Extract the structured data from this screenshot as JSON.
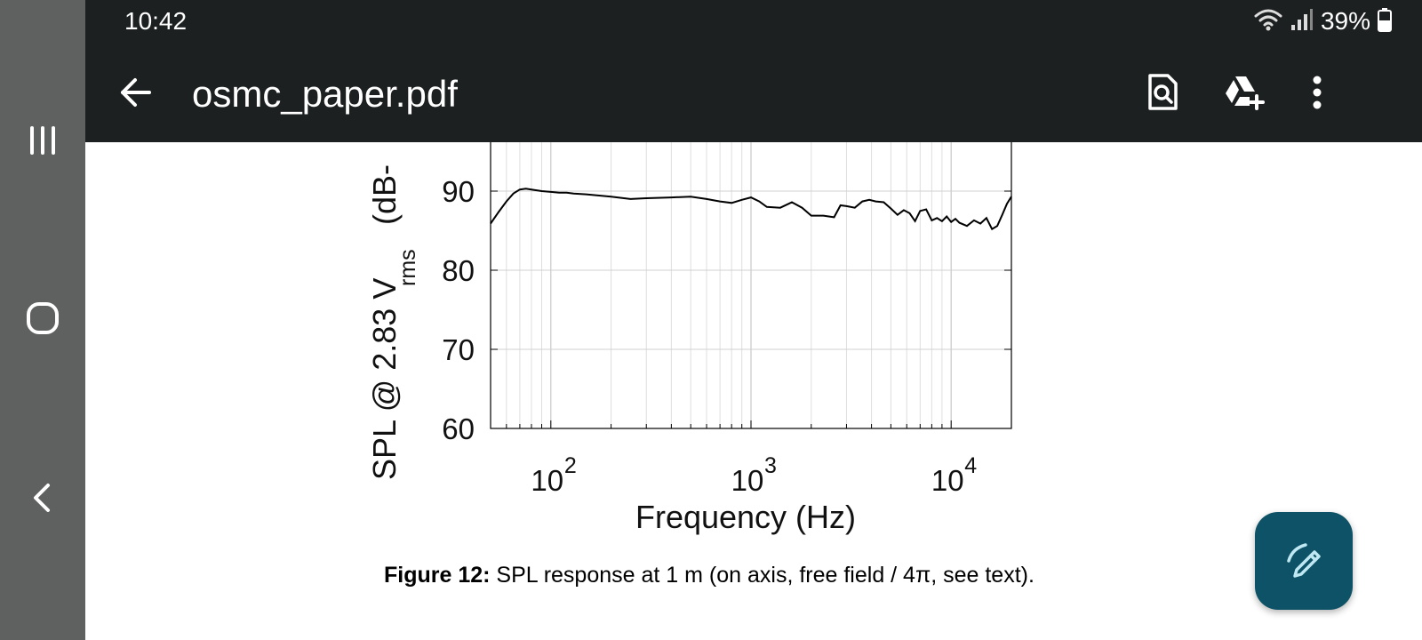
{
  "status_bar": {
    "time": "10:42",
    "battery": "39%",
    "icons": [
      "wifi-icon",
      "signal-icon",
      "battery-icon"
    ]
  },
  "app_bar": {
    "title": "osmc_paper.pdf",
    "icons": [
      "back-arrow-icon",
      "search-document-icon",
      "add-to-drive-icon",
      "more-vert-icon"
    ]
  },
  "nav_bar": {
    "icons": [
      "recents-icon",
      "home-icon",
      "back-icon"
    ]
  },
  "caption": {
    "label": "Figure 12:",
    "text": " SPL response at 1 m (on axis, free field / 4π, see text)."
  },
  "fab": {
    "icon": "edit-pen-icon",
    "color": "#0d5266"
  },
  "chart_data": {
    "type": "line",
    "title": "",
    "xlabel": "Frequency (Hz)",
    "ylabel": "SPL @ 2.83 V",
    "ylabel_sub": "rms",
    "ylabel_unit": "(dB-",
    "x_scale": "log",
    "xlim": [
      50,
      20000
    ],
    "ylim": [
      60,
      97
    ],
    "yticks": [
      60,
      70,
      80,
      90
    ],
    "xtick_bases": [
      "10",
      "10",
      "10"
    ],
    "xtick_exponents": [
      "2",
      "3",
      "4"
    ],
    "xtick_values": [
      100,
      1000,
      10000
    ],
    "grid": true,
    "series": [
      {
        "color": "#000000",
        "x": [
          50,
          55,
          60,
          65,
          70,
          75,
          80,
          90,
          100,
          110,
          120,
          130,
          150,
          200,
          250,
          300,
          400,
          500,
          600,
          700,
          800,
          900,
          1000,
          1100,
          1200,
          1400,
          1600,
          1800,
          2000,
          2300,
          2600,
          2800,
          3000,
          3300,
          3600,
          3900,
          4200,
          4600,
          5000,
          5400,
          5800,
          6200,
          6600,
          7000,
          7500,
          8000,
          8500,
          9000,
          9500,
          10000,
          10500,
          11000,
          12000,
          13000,
          14000,
          15000,
          16000,
          17000,
          18000,
          19000,
          20000
        ],
        "y": [
          85.9,
          87.4,
          88.7,
          89.7,
          90.2,
          90.3,
          90.2,
          90.0,
          89.9,
          89.8,
          89.8,
          89.7,
          89.6,
          89.3,
          89.0,
          89.1,
          89.2,
          89.3,
          89.0,
          88.7,
          88.5,
          88.9,
          89.2,
          88.7,
          88.0,
          87.9,
          88.6,
          87.9,
          86.9,
          86.9,
          86.7,
          88.2,
          88.1,
          87.9,
          88.7,
          88.9,
          88.7,
          88.6,
          87.8,
          87.0,
          87.6,
          87.2,
          86.2,
          87.5,
          87.7,
          86.3,
          86.6,
          86.2,
          86.8,
          86.1,
          86.5,
          86.0,
          85.6,
          86.3,
          85.9,
          86.6,
          85.2,
          85.6,
          87.0,
          88.4,
          89.3
        ]
      }
    ]
  }
}
